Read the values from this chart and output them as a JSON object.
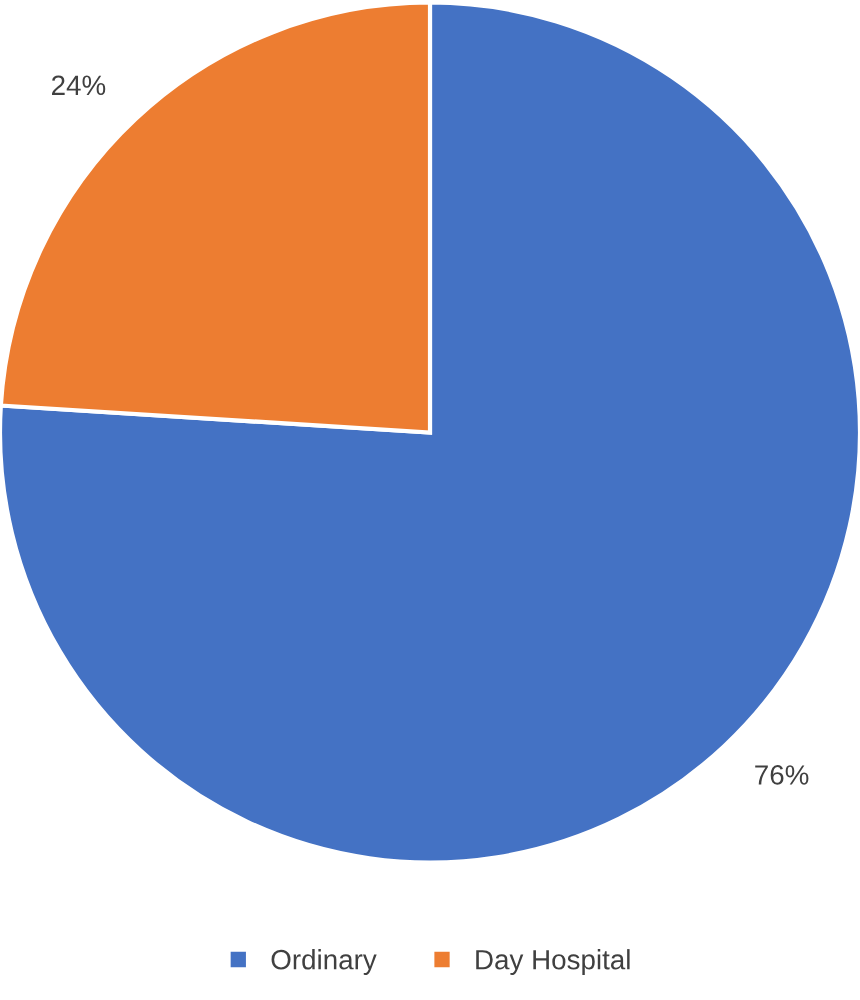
{
  "chart_data": {
    "type": "pie",
    "categories": [
      "Ordinary",
      "Day Hospital"
    ],
    "values": [
      76,
      24
    ],
    "colors": [
      "#4472c4",
      "#ed7d31"
    ],
    "value_labels": [
      "76%",
      "24%"
    ],
    "legend": "bottom"
  }
}
